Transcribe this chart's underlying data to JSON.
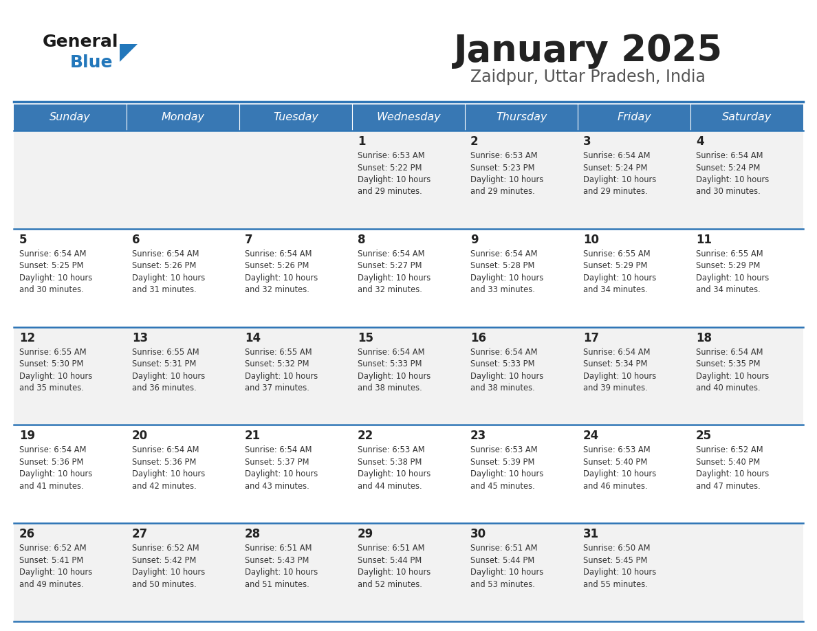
{
  "title": "January 2025",
  "subtitle": "Zaidpur, Uttar Pradesh, India",
  "header_bg": "#3878b4",
  "header_text_color": "#FFFFFF",
  "cell_bg_row0": "#F2F2F2",
  "cell_bg_row1": "#FFFFFF",
  "border_color": "#2E75B6",
  "line_color": "#2E75B6",
  "days_of_week": [
    "Sunday",
    "Monday",
    "Tuesday",
    "Wednesday",
    "Thursday",
    "Friday",
    "Saturday"
  ],
  "title_color": "#222222",
  "subtitle_color": "#555555",
  "day_num_color": "#222222",
  "info_color": "#333333",
  "logo_general_color": "#1a1a1a",
  "logo_blue_color": "#2277bb",
  "calendar": [
    [
      {
        "day": null,
        "sunrise": null,
        "sunset": null,
        "daylight": null
      },
      {
        "day": null,
        "sunrise": null,
        "sunset": null,
        "daylight": null
      },
      {
        "day": null,
        "sunrise": null,
        "sunset": null,
        "daylight": null
      },
      {
        "day": "1",
        "sunrise": "6:53 AM",
        "sunset": "5:22 PM",
        "daylight": "10 hours and 29 minutes."
      },
      {
        "day": "2",
        "sunrise": "6:53 AM",
        "sunset": "5:23 PM",
        "daylight": "10 hours and 29 minutes."
      },
      {
        "day": "3",
        "sunrise": "6:54 AM",
        "sunset": "5:24 PM",
        "daylight": "10 hours and 29 minutes."
      },
      {
        "day": "4",
        "sunrise": "6:54 AM",
        "sunset": "5:24 PM",
        "daylight": "10 hours and 30 minutes."
      }
    ],
    [
      {
        "day": "5",
        "sunrise": "6:54 AM",
        "sunset": "5:25 PM",
        "daylight": "10 hours and 30 minutes."
      },
      {
        "day": "6",
        "sunrise": "6:54 AM",
        "sunset": "5:26 PM",
        "daylight": "10 hours and 31 minutes."
      },
      {
        "day": "7",
        "sunrise": "6:54 AM",
        "sunset": "5:26 PM",
        "daylight": "10 hours and 32 minutes."
      },
      {
        "day": "8",
        "sunrise": "6:54 AM",
        "sunset": "5:27 PM",
        "daylight": "10 hours and 32 minutes."
      },
      {
        "day": "9",
        "sunrise": "6:54 AM",
        "sunset": "5:28 PM",
        "daylight": "10 hours and 33 minutes."
      },
      {
        "day": "10",
        "sunrise": "6:55 AM",
        "sunset": "5:29 PM",
        "daylight": "10 hours and 34 minutes."
      },
      {
        "day": "11",
        "sunrise": "6:55 AM",
        "sunset": "5:29 PM",
        "daylight": "10 hours and 34 minutes."
      }
    ],
    [
      {
        "day": "12",
        "sunrise": "6:55 AM",
        "sunset": "5:30 PM",
        "daylight": "10 hours and 35 minutes."
      },
      {
        "day": "13",
        "sunrise": "6:55 AM",
        "sunset": "5:31 PM",
        "daylight": "10 hours and 36 minutes."
      },
      {
        "day": "14",
        "sunrise": "6:55 AM",
        "sunset": "5:32 PM",
        "daylight": "10 hours and 37 minutes."
      },
      {
        "day": "15",
        "sunrise": "6:54 AM",
        "sunset": "5:33 PM",
        "daylight": "10 hours and 38 minutes."
      },
      {
        "day": "16",
        "sunrise": "6:54 AM",
        "sunset": "5:33 PM",
        "daylight": "10 hours and 38 minutes."
      },
      {
        "day": "17",
        "sunrise": "6:54 AM",
        "sunset": "5:34 PM",
        "daylight": "10 hours and 39 minutes."
      },
      {
        "day": "18",
        "sunrise": "6:54 AM",
        "sunset": "5:35 PM",
        "daylight": "10 hours and 40 minutes."
      }
    ],
    [
      {
        "day": "19",
        "sunrise": "6:54 AM",
        "sunset": "5:36 PM",
        "daylight": "10 hours and 41 minutes."
      },
      {
        "day": "20",
        "sunrise": "6:54 AM",
        "sunset": "5:36 PM",
        "daylight": "10 hours and 42 minutes."
      },
      {
        "day": "21",
        "sunrise": "6:54 AM",
        "sunset": "5:37 PM",
        "daylight": "10 hours and 43 minutes."
      },
      {
        "day": "22",
        "sunrise": "6:53 AM",
        "sunset": "5:38 PM",
        "daylight": "10 hours and 44 minutes."
      },
      {
        "day": "23",
        "sunrise": "6:53 AM",
        "sunset": "5:39 PM",
        "daylight": "10 hours and 45 minutes."
      },
      {
        "day": "24",
        "sunrise": "6:53 AM",
        "sunset": "5:40 PM",
        "daylight": "10 hours and 46 minutes."
      },
      {
        "day": "25",
        "sunrise": "6:52 AM",
        "sunset": "5:40 PM",
        "daylight": "10 hours and 47 minutes."
      }
    ],
    [
      {
        "day": "26",
        "sunrise": "6:52 AM",
        "sunset": "5:41 PM",
        "daylight": "10 hours and 49 minutes."
      },
      {
        "day": "27",
        "sunrise": "6:52 AM",
        "sunset": "5:42 PM",
        "daylight": "10 hours and 50 minutes."
      },
      {
        "day": "28",
        "sunrise": "6:51 AM",
        "sunset": "5:43 PM",
        "daylight": "10 hours and 51 minutes."
      },
      {
        "day": "29",
        "sunrise": "6:51 AM",
        "sunset": "5:44 PM",
        "daylight": "10 hours and 52 minutes."
      },
      {
        "day": "30",
        "sunrise": "6:51 AM",
        "sunset": "5:44 PM",
        "daylight": "10 hours and 53 minutes."
      },
      {
        "day": "31",
        "sunrise": "6:50 AM",
        "sunset": "5:45 PM",
        "daylight": "10 hours and 55 minutes."
      },
      {
        "day": null,
        "sunrise": null,
        "sunset": null,
        "daylight": null
      }
    ]
  ]
}
